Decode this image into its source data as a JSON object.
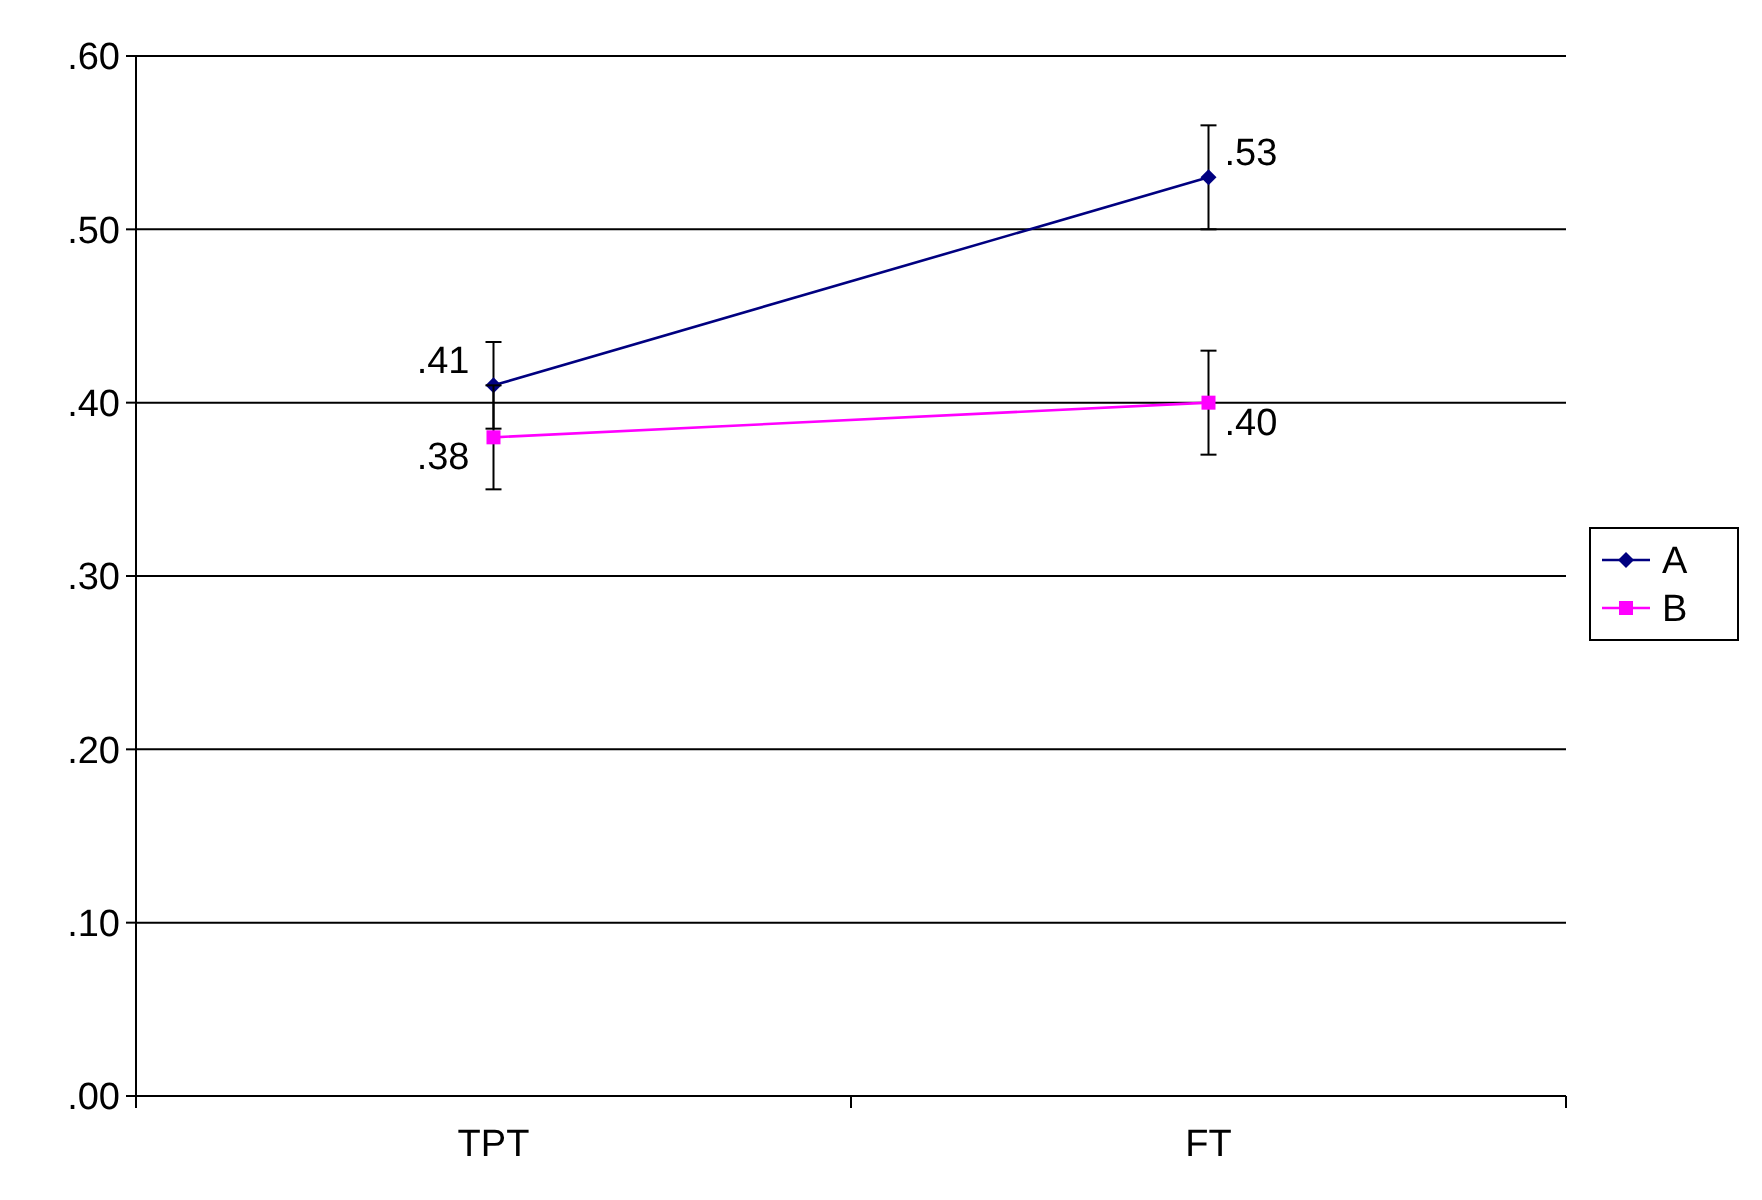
{
  "chart_data": {
    "type": "line",
    "categories": [
      "TPT",
      "FT"
    ],
    "series": [
      {
        "name": "A",
        "color": "#000080",
        "values": [
          0.41,
          0.53
        ],
        "errors": [
          0.025,
          0.03
        ],
        "value_labels": [
          ".41",
          ".53"
        ],
        "marker": "diamond"
      },
      {
        "name": "B",
        "color": "#ff00ff",
        "values": [
          0.38,
          0.4
        ],
        "errors": [
          0.03,
          0.03
        ],
        "value_labels": [
          ".38",
          ".40"
        ],
        "marker": "square"
      }
    ],
    "ylim": [
      0,
      0.6
    ],
    "yticks": [
      {
        "value": 0,
        "label": ".00"
      },
      {
        "value": 0.1,
        "label": ".10"
      },
      {
        "value": 0.2,
        "label": ".20"
      },
      {
        "value": 0.3,
        "label": ".30"
      },
      {
        "value": 0.4,
        "label": ".40"
      },
      {
        "value": 0.5,
        "label": ".50"
      },
      {
        "value": 0.6,
        "label": ".60"
      }
    ],
    "grid": "y",
    "legend": "right",
    "line_style": "solid"
  }
}
